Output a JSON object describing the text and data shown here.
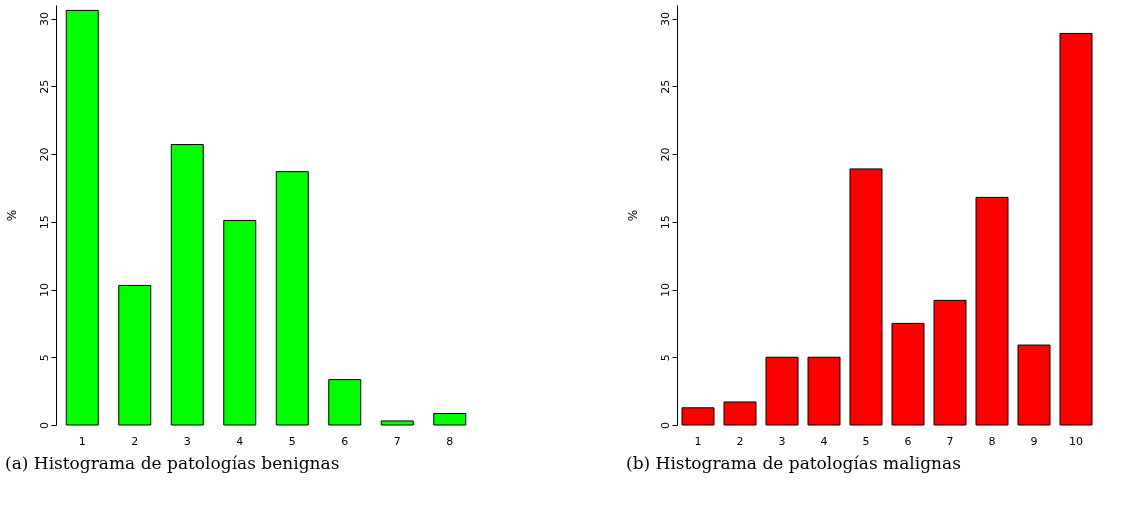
{
  "chart_data": [
    {
      "type": "bar",
      "title": "(a) Histograma de patologías benignas",
      "ylabel": "%",
      "categories": [
        "1",
        "2",
        "3",
        "4",
        "5",
        "6",
        "7",
        "8"
      ],
      "values": [
        30.6,
        10.3,
        20.7,
        15.1,
        18.7,
        3.35,
        0.3,
        0.85
      ],
      "color": "#00ff00",
      "ylim": [
        0,
        31
      ],
      "yticks": [
        0,
        5,
        10,
        15,
        20,
        25,
        30
      ],
      "grid": false
    },
    {
      "type": "bar",
      "title": "(b) Histograma de patologías malignas",
      "ylabel": "%",
      "categories": [
        "1",
        "2",
        "3",
        "4",
        "5",
        "6",
        "7",
        "8",
        "9",
        "10"
      ],
      "values": [
        1.27,
        1.7,
        5.0,
        5.0,
        18.9,
        7.5,
        9.2,
        16.8,
        5.9,
        28.9
      ],
      "color": "#ff0000",
      "ylim": [
        0,
        31
      ],
      "yticks": [
        0,
        5,
        10,
        15,
        20,
        25,
        30
      ],
      "grid": false
    }
  ]
}
